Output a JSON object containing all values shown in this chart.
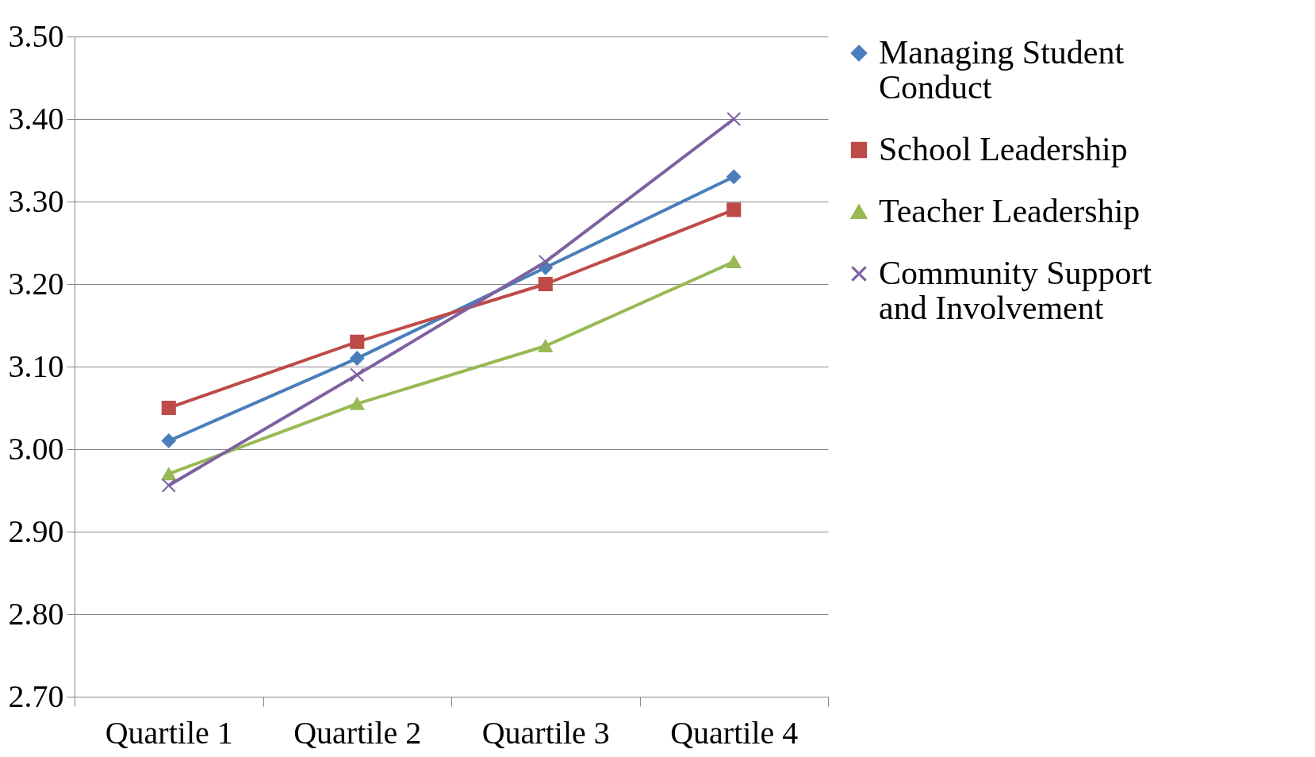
{
  "chart_data": {
    "type": "line",
    "categories": [
      "Quartile 1",
      "Quartile 2",
      "Quartile 3",
      "Quartile 4"
    ],
    "series": [
      {
        "name": "Managing Student Conduct",
        "color": "#4a7ebb",
        "marker": "diamond",
        "values": [
          3.01,
          3.11,
          3.22,
          3.33
        ]
      },
      {
        "name": "School Leadership",
        "color": "#be4b48",
        "marker": "square",
        "values": [
          3.05,
          3.13,
          3.2,
          3.29
        ]
      },
      {
        "name": "Teacher  Leadership",
        "color": "#98b954",
        "marker": "triangle",
        "values": [
          2.97,
          3.055,
          3.125,
          3.227
        ]
      },
      {
        "name": "Community Support and Involvement",
        "color": "#7d60a0",
        "marker": "cross",
        "values": [
          2.956,
          3.09,
          3.227,
          3.4
        ]
      }
    ],
    "ylim": [
      2.7,
      3.5
    ],
    "yticks": [
      {
        "value": 2.7,
        "label": "2.70"
      },
      {
        "value": 2.8,
        "label": "2.80"
      },
      {
        "value": 2.9,
        "label": "2.90"
      },
      {
        "value": 3.0,
        "label": "3.00"
      },
      {
        "value": 3.1,
        "label": "3.10"
      },
      {
        "value": 3.2,
        "label": "3.20"
      },
      {
        "value": 3.3,
        "label": "3.30"
      },
      {
        "value": 3.4,
        "label": "3.40"
      },
      {
        "value": 3.5,
        "label": "3.50"
      }
    ],
    "grid": "y",
    "legend": "right",
    "line_style": "solid"
  }
}
